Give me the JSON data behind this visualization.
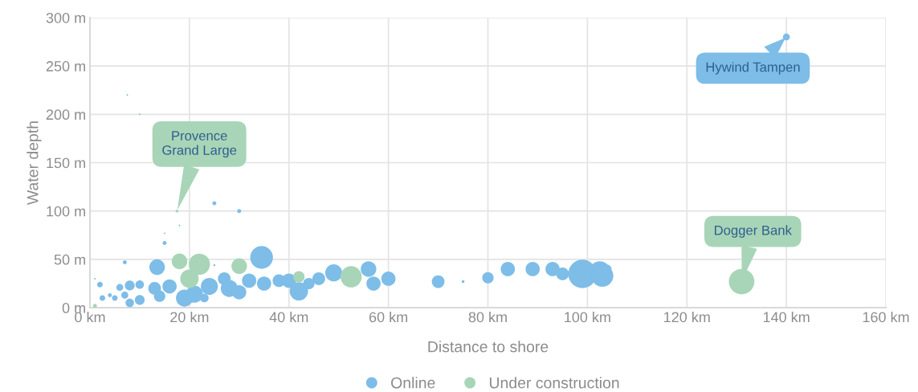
{
  "chart_data": {
    "type": "bubble",
    "xlabel": "Distance to shore",
    "ylabel": "Water depth",
    "xlim": [
      0,
      160
    ],
    "ylim": [
      0,
      300
    ],
    "xticks": [
      {
        "value": 0,
        "label": "0 km"
      },
      {
        "value": 20,
        "label": "20 km"
      },
      {
        "value": 40,
        "label": "40 km"
      },
      {
        "value": 60,
        "label": "60 km"
      },
      {
        "value": 80,
        "label": "80 km"
      },
      {
        "value": 100,
        "label": "100 km"
      },
      {
        "value": 120,
        "label": "120 km"
      },
      {
        "value": 140,
        "label": "140 km"
      },
      {
        "value": 160,
        "label": "160 km"
      }
    ],
    "yticks": [
      {
        "value": 0,
        "label": "0 m"
      },
      {
        "value": 50,
        "label": "50 m"
      },
      {
        "value": 100,
        "label": "100 m"
      },
      {
        "value": 150,
        "label": "150 m"
      },
      {
        "value": 200,
        "label": "200 m"
      },
      {
        "value": 250,
        "label": "250 m"
      },
      {
        "value": 300,
        "label": "300 m"
      }
    ],
    "grid": true,
    "legend": "bottom",
    "marker": "circle",
    "series": [
      {
        "name": "Online",
        "color": "#7dbde8",
        "x": [
          140,
          25,
          30,
          15,
          7,
          10,
          7.5,
          15,
          18,
          25,
          34.5,
          13.5,
          2,
          6,
          8,
          10,
          1,
          2.5,
          4,
          5,
          7,
          8,
          10,
          13,
          14,
          16,
          19,
          21,
          24,
          23,
          27,
          28,
          30,
          32,
          35,
          38,
          40,
          42,
          44,
          46,
          49,
          56,
          57,
          60,
          70,
          75,
          80,
          84,
          89,
          93,
          95,
          99,
          102.5,
          103,
          104
        ],
        "values": [
          280,
          108,
          100,
          67,
          47,
          200,
          220,
          77,
          85,
          44,
          52,
          42,
          24,
          21,
          23,
          24,
          30,
          10,
          13,
          10,
          13,
          5,
          8,
          20,
          12,
          22,
          10,
          14,
          22,
          10,
          30,
          20,
          16,
          28,
          25,
          28,
          28,
          17,
          25,
          30,
          36,
          40,
          25,
          30,
          27,
          27,
          31,
          40,
          40,
          40,
          35,
          35,
          37,
          33,
          40
        ],
        "sizes": [
          0.06,
          0.02,
          0.02,
          0.02,
          0.02,
          0.003,
          0.003,
          0.003,
          0.003,
          0.005,
          0.64,
          0.3,
          0.04,
          0.06,
          0.12,
          0.09,
          0.003,
          0.04,
          0.02,
          0.04,
          0.06,
          0.09,
          0.12,
          0.2,
          0.16,
          0.25,
          0.36,
          0.36,
          0.36,
          0.09,
          0.2,
          0.36,
          0.25,
          0.25,
          0.25,
          0.2,
          0.25,
          0.42,
          0.16,
          0.2,
          0.36,
          0.3,
          0.25,
          0.25,
          0.2,
          0.01,
          0.16,
          0.25,
          0.25,
          0.25,
          0.2,
          1,
          0.56,
          0.6,
          0.09
        ]
      },
      {
        "name": "Under construction",
        "color": "#a8d5b7",
        "x": [
          131,
          52.5,
          18,
          22,
          20,
          30,
          42,
          17.5,
          1
        ],
        "values": [
          27,
          32,
          48,
          45,
          30,
          43,
          32,
          100,
          2
        ],
        "sizes": [
          0.81,
          0.56,
          0.3,
          0.56,
          0.42,
          0.3,
          0.16,
          0.01,
          0.02
        ]
      }
    ],
    "annotations": [
      {
        "text": "Hywind Tampen",
        "x": 140,
        "y": 280
      },
      {
        "text": "Provence\nGrand Large",
        "x": 17.5,
        "y": 100
      },
      {
        "text": "Dogger Bank",
        "x": 131,
        "y": 27
      }
    ]
  }
}
